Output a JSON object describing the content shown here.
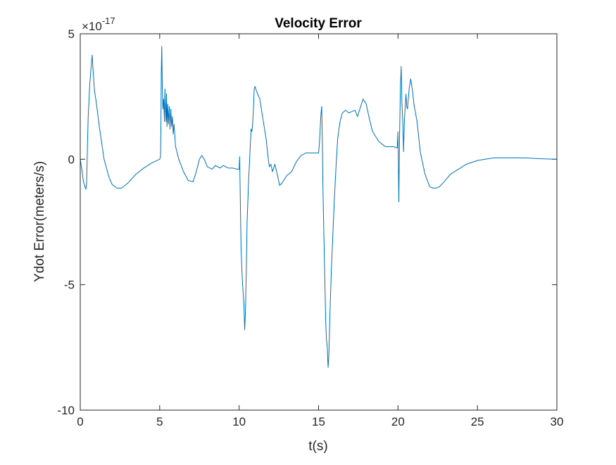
{
  "chart_data": {
    "type": "line",
    "title": "Velocity Error",
    "xlabel": "t(s)",
    "ylabel": "Ydot Error(meters/s)",
    "y_exponent_base": "×10",
    "y_exponent": "-17",
    "xlim": [
      0,
      30
    ],
    "ylim": [
      -10,
      5
    ],
    "y_scale_factor": 1e-17,
    "xticks": [
      0,
      5,
      10,
      15,
      20,
      25,
      30
    ],
    "xtick_labels": [
      "0",
      "5",
      "10",
      "15",
      "20",
      "25",
      "30"
    ],
    "yticks": [
      -10,
      -5,
      0,
      5
    ],
    "ytick_labels": [
      "-10",
      "-5",
      "0",
      "5"
    ],
    "grid": false,
    "legend": "none",
    "series": [
      {
        "color": "#0072BD",
        "points": [
          [
            0.0,
            0.0
          ],
          [
            0.1,
            -0.4
          ],
          [
            0.2,
            -0.9
          ],
          [
            0.3,
            -1.1
          ],
          [
            0.35,
            -1.2
          ],
          [
            0.4,
            -1.0
          ],
          [
            0.45,
            0.5
          ],
          [
            0.5,
            1.7
          ],
          [
            0.6,
            3.0
          ],
          [
            0.7,
            3.8
          ],
          [
            0.75,
            4.15
          ],
          [
            0.8,
            3.6
          ],
          [
            0.9,
            2.7
          ],
          [
            1.0,
            2.3
          ],
          [
            1.2,
            1.3
          ],
          [
            1.5,
            0.0
          ],
          [
            1.8,
            -0.7
          ],
          [
            2.0,
            -1.0
          ],
          [
            2.3,
            -1.15
          ],
          [
            2.6,
            -1.15
          ],
          [
            3.0,
            -0.95
          ],
          [
            3.5,
            -0.6
          ],
          [
            4.0,
            -0.35
          ],
          [
            4.5,
            -0.15
          ],
          [
            5.0,
            0.0
          ],
          [
            5.05,
            0.1
          ],
          [
            5.08,
            1.5
          ],
          [
            5.1,
            3.5
          ],
          [
            5.13,
            4.5
          ],
          [
            5.16,
            3.0
          ],
          [
            5.2,
            2.0
          ],
          [
            5.25,
            2.4
          ],
          [
            5.3,
            1.5
          ],
          [
            5.33,
            2.8
          ],
          [
            5.36,
            2.1
          ],
          [
            5.4,
            1.5
          ],
          [
            5.43,
            2.6
          ],
          [
            5.46,
            1.3
          ],
          [
            5.5,
            2.2
          ],
          [
            5.55,
            1.4
          ],
          [
            5.6,
            2.1
          ],
          [
            5.65,
            1.2
          ],
          [
            5.7,
            2.0
          ],
          [
            5.75,
            1.3
          ],
          [
            5.8,
            1.7
          ],
          [
            5.85,
            1.0
          ],
          [
            5.9,
            1.4
          ],
          [
            6.0,
            0.5
          ],
          [
            6.2,
            0.0
          ],
          [
            6.5,
            -0.5
          ],
          [
            6.8,
            -0.85
          ],
          [
            7.1,
            -0.9
          ],
          [
            7.3,
            -0.5
          ],
          [
            7.5,
            0.0
          ],
          [
            7.65,
            0.15
          ],
          [
            7.8,
            0.0
          ],
          [
            8.0,
            -0.3
          ],
          [
            8.3,
            -0.4
          ],
          [
            8.5,
            -0.25
          ],
          [
            8.8,
            -0.35
          ],
          [
            9.0,
            -0.25
          ],
          [
            9.3,
            -0.35
          ],
          [
            9.6,
            -0.35
          ],
          [
            9.9,
            -0.4
          ],
          [
            10.0,
            -0.4
          ],
          [
            10.03,
            0.1
          ],
          [
            10.06,
            -1.0
          ],
          [
            10.12,
            -3.5
          ],
          [
            10.2,
            -4.8
          ],
          [
            10.25,
            -5.3
          ],
          [
            10.3,
            -5.8
          ],
          [
            10.35,
            -6.8
          ],
          [
            10.4,
            -6.0
          ],
          [
            10.45,
            -4.5
          ],
          [
            10.5,
            -2.5
          ],
          [
            10.6,
            -0.8
          ],
          [
            10.7,
            0.5
          ],
          [
            10.75,
            1.2
          ],
          [
            10.8,
            1.1
          ],
          [
            10.85,
            1.4
          ],
          [
            10.9,
            2.0
          ],
          [
            10.95,
            2.8
          ],
          [
            11.0,
            2.9
          ],
          [
            11.1,
            2.7
          ],
          [
            11.3,
            2.4
          ],
          [
            11.5,
            1.6
          ],
          [
            11.7,
            0.8
          ],
          [
            11.8,
            0.2
          ],
          [
            11.9,
            -0.3
          ],
          [
            12.0,
            -0.2
          ],
          [
            12.1,
            -0.5
          ],
          [
            12.25,
            -0.2
          ],
          [
            12.4,
            -0.6
          ],
          [
            12.55,
            -1.05
          ],
          [
            12.7,
            -0.95
          ],
          [
            13.0,
            -0.65
          ],
          [
            13.3,
            -0.5
          ],
          [
            13.6,
            -0.1
          ],
          [
            13.9,
            0.15
          ],
          [
            14.2,
            0.25
          ],
          [
            14.6,
            0.25
          ],
          [
            15.0,
            0.25
          ],
          [
            15.05,
            0.6
          ],
          [
            15.1,
            1.2
          ],
          [
            15.15,
            1.8
          ],
          [
            15.2,
            2.1
          ],
          [
            15.23,
            1.0
          ],
          [
            15.26,
            -0.5
          ],
          [
            15.3,
            -2.0
          ],
          [
            15.35,
            -3.5
          ],
          [
            15.4,
            -5.0
          ],
          [
            15.45,
            -6.5
          ],
          [
            15.5,
            -7.2
          ],
          [
            15.55,
            -7.5
          ],
          [
            15.6,
            -8.3
          ],
          [
            15.65,
            -7.8
          ],
          [
            15.7,
            -6.5
          ],
          [
            15.8,
            -4.5
          ],
          [
            15.9,
            -3.0
          ],
          [
            16.0,
            -1.5
          ],
          [
            16.1,
            -0.3
          ],
          [
            16.2,
            0.8
          ],
          [
            16.35,
            1.5
          ],
          [
            16.5,
            1.85
          ],
          [
            16.7,
            1.95
          ],
          [
            16.9,
            1.85
          ],
          [
            17.1,
            1.9
          ],
          [
            17.3,
            1.95
          ],
          [
            17.45,
            1.7
          ],
          [
            17.6,
            2.0
          ],
          [
            17.8,
            2.4
          ],
          [
            18.0,
            2.2
          ],
          [
            18.2,
            1.6
          ],
          [
            18.4,
            1.1
          ],
          [
            18.6,
            0.9
          ],
          [
            18.8,
            0.7
          ],
          [
            19.0,
            0.6
          ],
          [
            19.2,
            0.5
          ],
          [
            19.4,
            0.5
          ],
          [
            19.7,
            0.5
          ],
          [
            19.95,
            0.45
          ],
          [
            20.0,
            1.1
          ],
          [
            20.05,
            -1.7
          ],
          [
            20.1,
            1.0
          ],
          [
            20.15,
            2.8
          ],
          [
            20.2,
            3.7
          ],
          [
            20.25,
            2.2
          ],
          [
            20.3,
            1.5
          ],
          [
            20.35,
            0.3
          ],
          [
            20.4,
            1.5
          ],
          [
            20.5,
            2.6
          ],
          [
            20.55,
            2.1
          ],
          [
            20.6,
            2.0
          ],
          [
            20.7,
            2.8
          ],
          [
            20.8,
            3.2
          ],
          [
            20.9,
            2.8
          ],
          [
            21.0,
            2.2
          ],
          [
            21.2,
            1.5
          ],
          [
            21.4,
            0.3
          ],
          [
            21.7,
            -0.6
          ],
          [
            22.0,
            -1.1
          ],
          [
            22.2,
            -1.15
          ],
          [
            22.4,
            -1.15
          ],
          [
            22.6,
            -1.1
          ],
          [
            22.9,
            -0.9
          ],
          [
            23.3,
            -0.6
          ],
          [
            23.8,
            -0.4
          ],
          [
            24.3,
            -0.2
          ],
          [
            25.0,
            -0.05
          ],
          [
            26.0,
            0.05
          ],
          [
            27.0,
            0.05
          ],
          [
            28.0,
            0.05
          ],
          [
            29.0,
            0.02
          ],
          [
            30.0,
            0.0
          ]
        ]
      }
    ]
  }
}
